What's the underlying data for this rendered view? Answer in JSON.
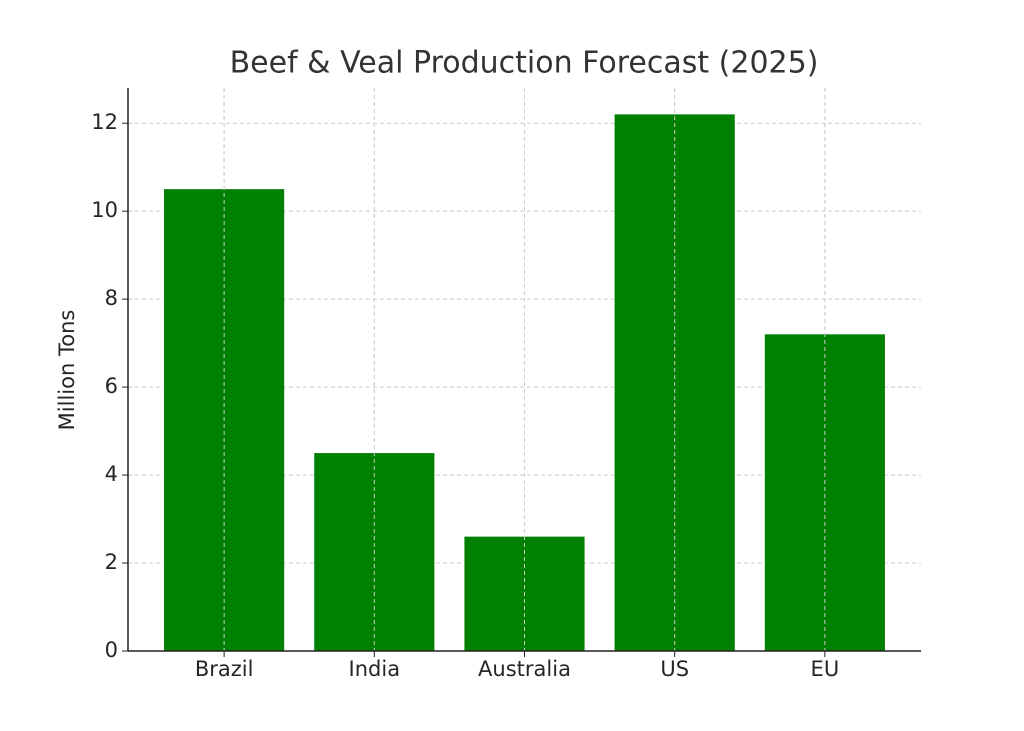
{
  "chart_data": {
    "type": "bar",
    "title": "Beef & Veal Production Forecast (2025)",
    "y_label": "Million Tons",
    "categories": [
      "Brazil",
      "India",
      "Australia",
      "US",
      "EU"
    ],
    "values": [
      10.5,
      4.5,
      2.6,
      12.2,
      7.2
    ],
    "color": "#008000",
    "ylim": [
      0,
      12.8
    ],
    "yticks": [
      0,
      2,
      4,
      6,
      8,
      10,
      12
    ],
    "grid": true
  }
}
